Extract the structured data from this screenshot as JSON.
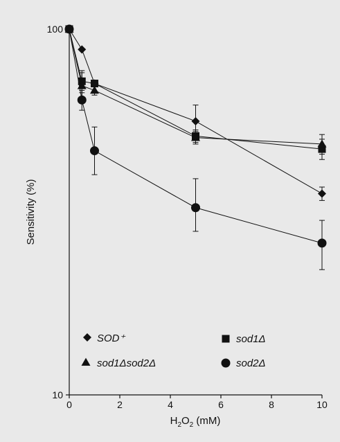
{
  "chart_data": {
    "type": "line",
    "xlabel_main": "H",
    "xlabel_sub1": "2",
    "xlabel_mid": "O",
    "xlabel_sub2": "2",
    "xlabel_unit": " (mM)",
    "ylabel": "Sensitivity (%)",
    "xlim": [
      0,
      10
    ],
    "ylim": [
      10,
      100
    ],
    "yscale": "log",
    "x_ticks": [
      "0",
      "2",
      "4",
      "6",
      "8",
      "10"
    ],
    "y_ticks": [
      "10",
      "100"
    ],
    "grid": false,
    "series": [
      {
        "name": "SOD⁺",
        "marker": "diamond",
        "points": [
          {
            "x": 0,
            "y": 100
          },
          {
            "x": 0.5,
            "y": 88
          },
          {
            "x": 1,
            "y": 71
          },
          {
            "x": 5,
            "y": 56,
            "err": [
              50.5,
              62
            ]
          },
          {
            "x": 10,
            "y": 35.5,
            "err": [
              34,
              37
            ]
          }
        ]
      },
      {
        "name": "sod1Δ",
        "marker": "square",
        "points": [
          {
            "x": 0,
            "y": 100
          },
          {
            "x": 0.5,
            "y": 72,
            "err": [
              67,
              77
            ]
          },
          {
            "x": 1,
            "y": 71
          },
          {
            "x": 5,
            "y": 51,
            "err": [
              49,
              53
            ]
          },
          {
            "x": 10,
            "y": 47,
            "err": [
              44,
              50
            ]
          }
        ]
      },
      {
        "name": "sod1Δsod2Δ",
        "marker": "triangle",
        "points": [
          {
            "x": 0,
            "y": 100
          },
          {
            "x": 0.5,
            "y": 70,
            "err": [
              64,
              76
            ]
          },
          {
            "x": 1,
            "y": 68,
            "err": [
              66,
              70
            ]
          },
          {
            "x": 5,
            "y": 50.5,
            "err": [
              48.5,
              52.5
            ]
          },
          {
            "x": 10,
            "y": 48.5,
            "err": [
              45.5,
              51.5
            ]
          }
        ]
      },
      {
        "name": "sod2Δ",
        "marker": "circle",
        "points": [
          {
            "x": 0,
            "y": 100
          },
          {
            "x": 0.5,
            "y": 64,
            "err": [
              60,
              68
            ]
          },
          {
            "x": 1,
            "y": 46.5,
            "err": [
              40,
              54
            ]
          },
          {
            "x": 5,
            "y": 32.5,
            "err": [
              28,
              39
            ]
          },
          {
            "x": 10,
            "y": 26,
            "err": [
              22,
              30
            ]
          }
        ]
      }
    ],
    "legend": {
      "placement": "bottom",
      "entries": [
        {
          "series": 0,
          "label": "SOD⁺"
        },
        {
          "series": 1,
          "label": "sod1Δ"
        },
        {
          "series": 2,
          "label": "sod1Δsod2Δ"
        },
        {
          "series": 3,
          "label": "sod2Δ"
        }
      ]
    }
  }
}
